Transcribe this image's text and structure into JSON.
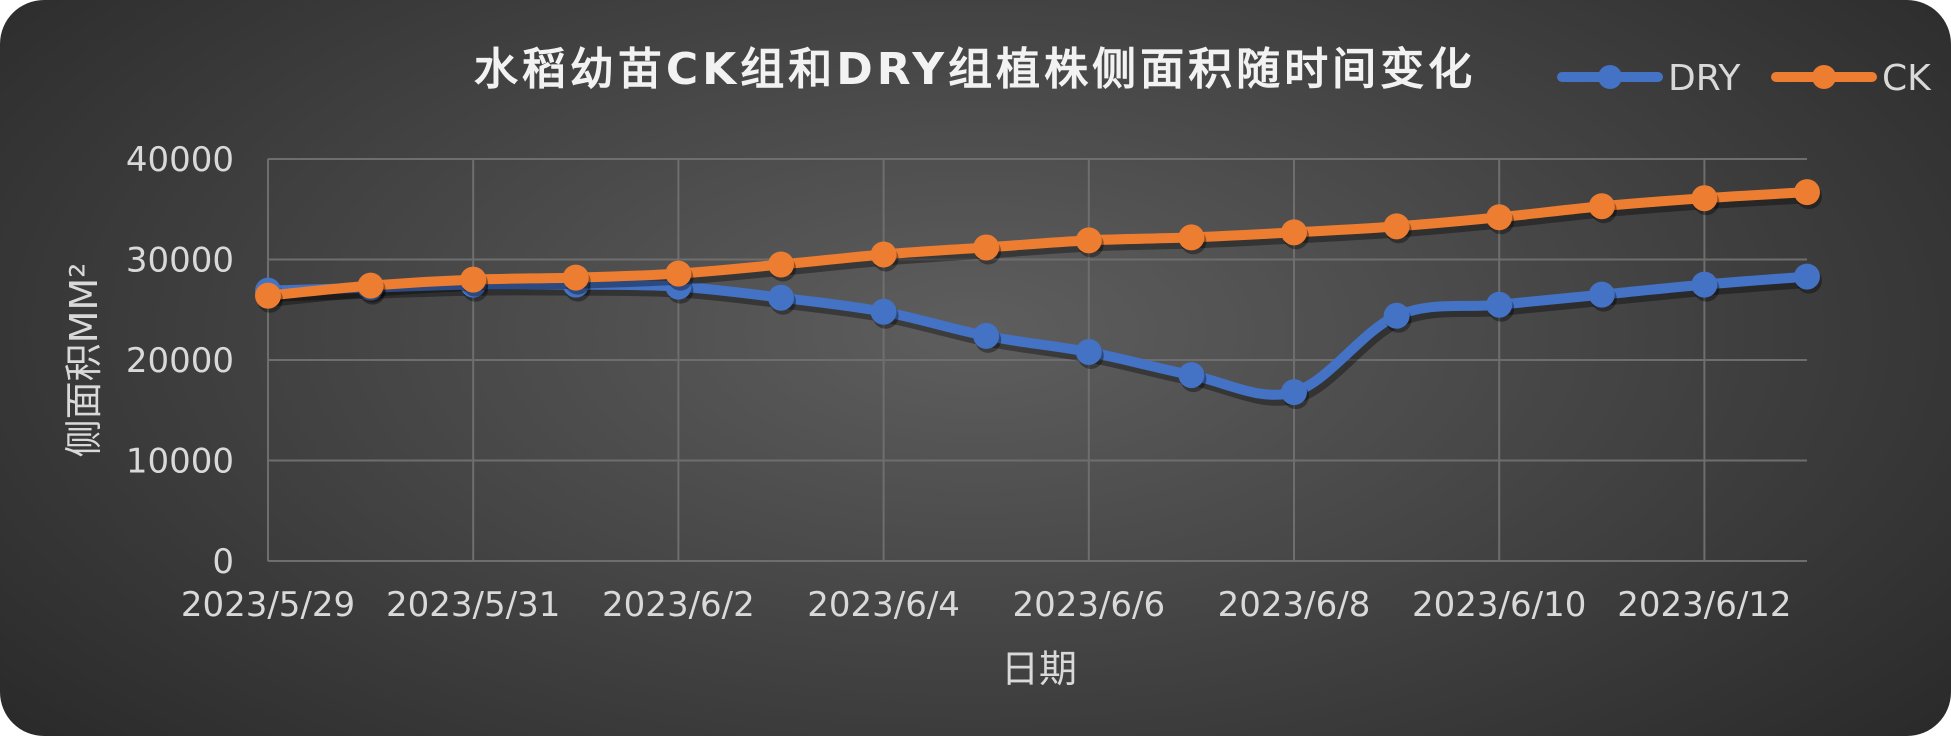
{
  "chart_data": {
    "type": "line",
    "title": "水稻幼苗CK组和DRY组植株侧面积随时间变化",
    "xlabel": "日期",
    "ylabel": "侧面积MM²",
    "ylim": [
      0,
      40000
    ],
    "yticks": [
      "0",
      "10000",
      "20000",
      "30000",
      "40000"
    ],
    "x": [
      "2023/5/29",
      "2023/5/30",
      "2023/5/31",
      "2023/6/1",
      "2023/6/2",
      "2023/6/3",
      "2023/6/4",
      "2023/6/5",
      "2023/6/6",
      "2023/6/7",
      "2023/6/8",
      "2023/6/9",
      "2023/6/10",
      "2023/6/11",
      "2023/6/12",
      "2023/6/13"
    ],
    "xtick_labels": [
      "2023/5/29",
      "2023/5/31",
      "2023/6/2",
      "2023/6/4",
      "2023/6/6",
      "2023/6/8",
      "2023/6/10",
      "2023/6/12"
    ],
    "grid": true,
    "legend_position": "top-right",
    "series": [
      {
        "name": "DRY",
        "color": "#4472c4",
        "values": [
          26900,
          27200,
          27500,
          27500,
          27300,
          26200,
          24800,
          22400,
          20800,
          18500,
          16800,
          24400,
          25500,
          26500,
          27500,
          28300
        ]
      },
      {
        "name": "CK",
        "color": "#ed7d31",
        "values": [
          26400,
          27400,
          28000,
          28200,
          28600,
          29500,
          30500,
          31200,
          31900,
          32200,
          32700,
          33300,
          34200,
          35300,
          36100,
          36700
        ]
      }
    ]
  }
}
